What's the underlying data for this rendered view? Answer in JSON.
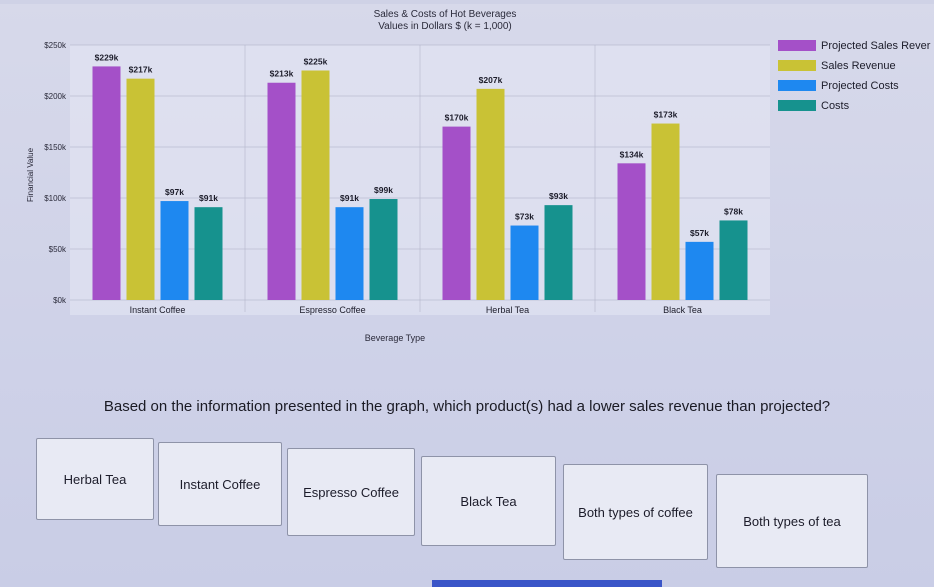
{
  "chart_data": {
    "type": "bar",
    "title": "Sales & Costs of Hot Beverages",
    "subtitle": "Values in Dollars $ (k = 1,000)",
    "xlabel": "Beverage Type",
    "ylabel": "Financial Value",
    "ylim": [
      0,
      250
    ],
    "yticks": [
      "$0k",
      "$50k",
      "$100k",
      "$150k",
      "$200k",
      "$250k"
    ],
    "categories": [
      "Instant Coffee",
      "Espresso Coffee",
      "Herbal Tea",
      "Black Tea"
    ],
    "series": [
      {
        "name": "Projected Sales Rever",
        "color": "#a450c8",
        "values": [
          229,
          213,
          170,
          134
        ],
        "labels": [
          "$229k",
          "$213k",
          "$170k",
          "$134k"
        ]
      },
      {
        "name": "Sales Revenue",
        "color": "#c9c235",
        "values": [
          217,
          225,
          207,
          173
        ],
        "labels": [
          "$217k",
          "$225k",
          "$207k",
          "$173k"
        ]
      },
      {
        "name": "Projected Costs",
        "color": "#1e88f0",
        "values": [
          97,
          91,
          73,
          57
        ],
        "labels": [
          "$97k",
          "$91k",
          "$73k",
          "$57k"
        ]
      },
      {
        "name": "Costs",
        "color": "#16928e",
        "values": [
          91,
          99,
          93,
          78
        ],
        "labels": [
          "$91k",
          "$99k",
          "$93k",
          "$78k"
        ]
      }
    ],
    "legend": "top-right",
    "grid": true
  },
  "question": "Based on the information presented in the graph, which product(s) had a lower sales revenue than projected?",
  "answers": [
    "Herbal Tea",
    "Instant Coffee",
    "Espresso Coffee",
    "Black Tea",
    "Both types of coffee",
    "Both types of tea"
  ]
}
